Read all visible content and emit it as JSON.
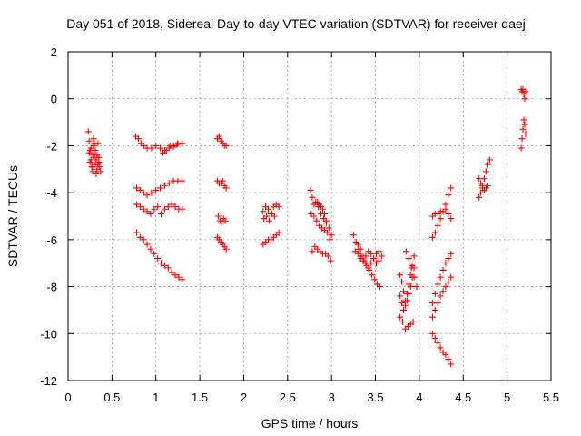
{
  "chart_data": {
    "type": "scatter",
    "title": "Day 051 of 2018, Sidereal Day-to-day VTEC variation (SDTVAR) for receiver daej",
    "xlabel": "GPS time / hours",
    "ylabel": "SDTVAR / TECUs",
    "xlim": [
      0,
      5.5
    ],
    "ylim": [
      -12,
      2
    ],
    "xticks": [
      0,
      0.5,
      1,
      1.5,
      2,
      2.5,
      3,
      3.5,
      4,
      4.5,
      5,
      5.5
    ],
    "xtick_labels": [
      "0",
      "0.5",
      "1",
      "1.5",
      "2",
      "2.5",
      "3",
      "3.5",
      "4",
      "4.5",
      "5",
      "5.5"
    ],
    "yticks": [
      2,
      0,
      -2,
      -4,
      -6,
      -8,
      -10,
      -12
    ],
    "ytick_labels": [
      "2",
      "0",
      "-2",
      "-4",
      "-6",
      "-8",
      "-10",
      "-12"
    ],
    "grid": true,
    "marker": "+",
    "series_color": "#ff0000",
    "segments": [
      {
        "x": [
          0.23,
          0.24,
          0.25,
          0.26,
          0.27,
          0.28,
          0.29,
          0.3,
          0.31,
          0.32,
          0.33,
          0.34,
          0.35,
          0.36,
          0.37
        ],
        "y": [
          -1.4,
          -1.8,
          -2.2,
          -2.6,
          -2.9,
          -2.4,
          -2.0,
          -1.9,
          -2.2,
          -2.6,
          -3.0,
          -2.8,
          -2.5,
          -2.9,
          -3.1
        ]
      },
      {
        "x": [
          0.24,
          0.25,
          0.26,
          0.27,
          0.28,
          0.29,
          0.3,
          0.31,
          0.32,
          0.33,
          0.34,
          0.35
        ],
        "y": [
          -2.3,
          -2.7,
          -2.1,
          -2.9,
          -3.1,
          -1.7,
          -2.5,
          -2.8,
          -3.2,
          -2.4,
          -1.9,
          -2.7
        ]
      },
      {
        "x": [
          0.77,
          0.8,
          0.83,
          0.86,
          0.9,
          0.95,
          1.0,
          1.05,
          1.1,
          1.15,
          1.2,
          1.25,
          1.3
        ],
        "y": [
          -1.6,
          -1.7,
          -1.9,
          -2.0,
          -2.1,
          -2.1,
          -2.0,
          -2.1,
          -2.2,
          -2.1,
          -2.0,
          -1.9,
          -1.9
        ]
      },
      {
        "x": [
          1.08,
          1.12,
          1.16,
          1.2,
          1.24
        ],
        "y": [
          -2.3,
          -2.2,
          -2.0,
          -2.05,
          -1.95
        ]
      },
      {
        "x": [
          0.78,
          0.82,
          0.86,
          0.9,
          0.95,
          1.0,
          1.05,
          1.1,
          1.15,
          1.2,
          1.25,
          1.3
        ],
        "y": [
          -3.8,
          -3.9,
          -4.0,
          -4.1,
          -4.0,
          -3.9,
          -3.8,
          -3.7,
          -3.6,
          -3.5,
          -3.5,
          -3.5
        ]
      },
      {
        "x": [
          0.78,
          0.82,
          0.86,
          0.9,
          0.94,
          0.98,
          1.02,
          1.06,
          1.1,
          1.14,
          1.18,
          1.22,
          1.26,
          1.3
        ],
        "y": [
          -4.5,
          -4.6,
          -4.7,
          -4.8,
          -4.9,
          -4.7,
          -4.6,
          -4.9,
          -4.7,
          -4.6,
          -4.5,
          -4.6,
          -4.7,
          -4.7
        ]
      },
      {
        "x": [
          0.78,
          0.82,
          0.86,
          0.9,
          0.94,
          0.98,
          1.02,
          1.06,
          1.1,
          1.14,
          1.18,
          1.22,
          1.26,
          1.3
        ],
        "y": [
          -5.7,
          -5.9,
          -6.0,
          -6.2,
          -6.4,
          -6.6,
          -6.8,
          -7.0,
          -7.1,
          -7.2,
          -7.4,
          -7.5,
          -7.6,
          -7.7
        ]
      },
      {
        "x": [
          1.7,
          1.72,
          1.74,
          1.76,
          1.78,
          1.8
        ],
        "y": [
          -1.7,
          -1.6,
          -1.8,
          -1.9,
          -2.0,
          -2.0
        ]
      },
      {
        "x": [
          1.7,
          1.72,
          1.74,
          1.76,
          1.78,
          1.8
        ],
        "y": [
          -3.5,
          -3.6,
          -3.6,
          -3.5,
          -3.7,
          -3.8
        ]
      },
      {
        "x": [
          1.71,
          1.73,
          1.75,
          1.77,
          1.79
        ],
        "y": [
          -5.0,
          -5.2,
          -5.3,
          -5.1,
          -5.2
        ]
      },
      {
        "x": [
          1.7,
          1.72,
          1.74,
          1.76,
          1.78,
          1.8
        ],
        "y": [
          -5.9,
          -6.0,
          -6.1,
          -6.2,
          -6.3,
          -6.4
        ]
      },
      {
        "x": [
          2.22,
          2.25,
          2.28,
          2.31,
          2.34,
          2.37,
          2.4
        ],
        "y": [
          -4.8,
          -4.6,
          -4.7,
          -4.9,
          -4.6,
          -4.5,
          -4.6
        ]
      },
      {
        "x": [
          2.23,
          2.26,
          2.29,
          2.32,
          2.35
        ],
        "y": [
          -5.1,
          -5.0,
          -5.2,
          -4.9,
          -5.0
        ]
      },
      {
        "x": [
          2.22,
          2.25,
          2.28,
          2.31,
          2.34,
          2.37,
          2.4
        ],
        "y": [
          -6.2,
          -6.1,
          -6.0,
          -6.0,
          -5.9,
          -5.8,
          -5.7
        ]
      },
      {
        "x": [
          2.76,
          2.78,
          2.8,
          2.82,
          2.84,
          2.86,
          2.88,
          2.9,
          2.92,
          2.94
        ],
        "y": [
          -3.9,
          -4.2,
          -4.5,
          -4.4,
          -4.4,
          -4.5,
          -4.6,
          -4.7,
          -4.9,
          -5.2
        ]
      },
      {
        "x": [
          2.77,
          2.8,
          2.83,
          2.86,
          2.89,
          2.92,
          2.95,
          2.98
        ],
        "y": [
          -4.9,
          -5.0,
          -5.2,
          -5.4,
          -5.5,
          -5.6,
          -5.7,
          -6.0
        ]
      },
      {
        "x": [
          2.85,
          2.88,
          2.91,
          2.94,
          2.97,
          3.0
        ],
        "y": [
          -4.6,
          -4.9,
          -5.1,
          -5.3,
          -5.5,
          -5.8
        ]
      },
      {
        "x": [
          2.78,
          2.81,
          2.84,
          2.87,
          2.9,
          2.93,
          2.96,
          2.99
        ],
        "y": [
          -6.5,
          -6.3,
          -6.4,
          -6.5,
          -6.6,
          -6.6,
          -6.7,
          -6.9
        ]
      },
      {
        "x": [
          3.25,
          3.28,
          3.31,
          3.34,
          3.37,
          3.4,
          3.43,
          3.46,
          3.49,
          3.52,
          3.55
        ],
        "y": [
          -5.8,
          -6.1,
          -6.4,
          -6.7,
          -6.9,
          -7.1,
          -7.3,
          -7.5,
          -7.7,
          -7.9,
          -8.0
        ]
      },
      {
        "x": [
          3.27,
          3.3,
          3.33,
          3.36,
          3.39,
          3.42,
          3.45,
          3.48,
          3.51,
          3.54,
          3.57
        ],
        "y": [
          -6.5,
          -6.6,
          -6.8,
          -6.9,
          -6.7,
          -6.5,
          -6.6,
          -6.8,
          -7.0,
          -6.9,
          -6.7
        ]
      },
      {
        "x": [
          3.3,
          3.33,
          3.36,
          3.39,
          3.42,
          3.45,
          3.48,
          3.51,
          3.54
        ],
        "y": [
          -6.2,
          -6.4,
          -6.7,
          -7.0,
          -7.2,
          -7.0,
          -6.8,
          -6.6,
          -6.5
        ]
      },
      {
        "x": [
          3.78,
          3.8,
          3.82,
          3.84,
          3.86,
          3.88,
          3.9,
          3.92,
          3.94
        ],
        "y": [
          -7.5,
          -7.8,
          -8.2,
          -8.6,
          -8.3,
          -7.9,
          -7.5,
          -7.1,
          -6.7
        ]
      },
      {
        "x": [
          3.78,
          3.8,
          3.82,
          3.84,
          3.86,
          3.88,
          3.9,
          3.92,
          3.94
        ],
        "y": [
          -8.4,
          -8.7,
          -9.0,
          -8.8,
          -8.6,
          -8.3,
          -8.0,
          -7.6,
          -7.2
        ]
      },
      {
        "x": [
          3.85,
          3.88,
          3.91,
          3.94,
          3.97
        ],
        "y": [
          -6.5,
          -6.8,
          -7.2,
          -7.6,
          -8.0
        ]
      },
      {
        "x": [
          3.78,
          3.81,
          3.84,
          3.87,
          3.9,
          3.93
        ],
        "y": [
          -9.3,
          -9.5,
          -9.8,
          -9.7,
          -9.6,
          -9.5
        ]
      },
      {
        "x": [
          4.15,
          4.18,
          4.21,
          4.24,
          4.27,
          4.3,
          4.33,
          4.36
        ],
        "y": [
          -5.9,
          -5.7,
          -5.4,
          -5.1,
          -4.8,
          -4.5,
          -4.1,
          -3.8
        ]
      },
      {
        "x": [
          4.15,
          4.18,
          4.21,
          4.24,
          4.27,
          4.3,
          4.33,
          4.36
        ],
        "y": [
          -5.0,
          -4.9,
          -4.9,
          -4.8,
          -4.8,
          -4.7,
          -4.9,
          -5.1
        ]
      },
      {
        "x": [
          4.15,
          4.18,
          4.21,
          4.24,
          4.27,
          4.3,
          4.33,
          4.36
        ],
        "y": [
          -8.7,
          -8.3,
          -7.9,
          -7.6,
          -7.3,
          -7.0,
          -6.8,
          -6.6
        ]
      },
      {
        "x": [
          4.15,
          4.18,
          4.21,
          4.24,
          4.27,
          4.3,
          4.33,
          4.36
        ],
        "y": [
          -9.3,
          -9.0,
          -8.7,
          -8.4,
          -8.2,
          -8.0,
          -7.8,
          -7.6
        ]
      },
      {
        "x": [
          4.15,
          4.18,
          4.21,
          4.24,
          4.27,
          4.3,
          4.33,
          4.36
        ],
        "y": [
          -10.0,
          -10.2,
          -10.4,
          -10.6,
          -10.8,
          -10.9,
          -11.1,
          -11.3
        ]
      },
      {
        "x": [
          4.68,
          4.7,
          4.72,
          4.74,
          4.76,
          4.78,
          4.8
        ],
        "y": [
          -4.2,
          -4.0,
          -3.7,
          -3.4,
          -3.1,
          -2.8,
          -2.6
        ]
      },
      {
        "x": [
          4.68,
          4.7,
          4.72,
          4.74,
          4.76,
          4.78
        ],
        "y": [
          -3.4,
          -3.6,
          -3.8,
          -3.9,
          -3.8,
          -3.7
        ]
      },
      {
        "x": [
          5.16,
          5.17,
          5.18,
          5.19,
          5.2,
          5.21
        ],
        "y": [
          0.4,
          0.3,
          0.4,
          0.2,
          0.0,
          0.3
        ]
      },
      {
        "x": [
          5.16,
          5.17,
          5.18,
          5.19,
          5.2,
          5.21
        ],
        "y": [
          -2.1,
          -1.7,
          -1.3,
          -0.9,
          -1.1,
          -1.5
        ]
      }
    ]
  }
}
